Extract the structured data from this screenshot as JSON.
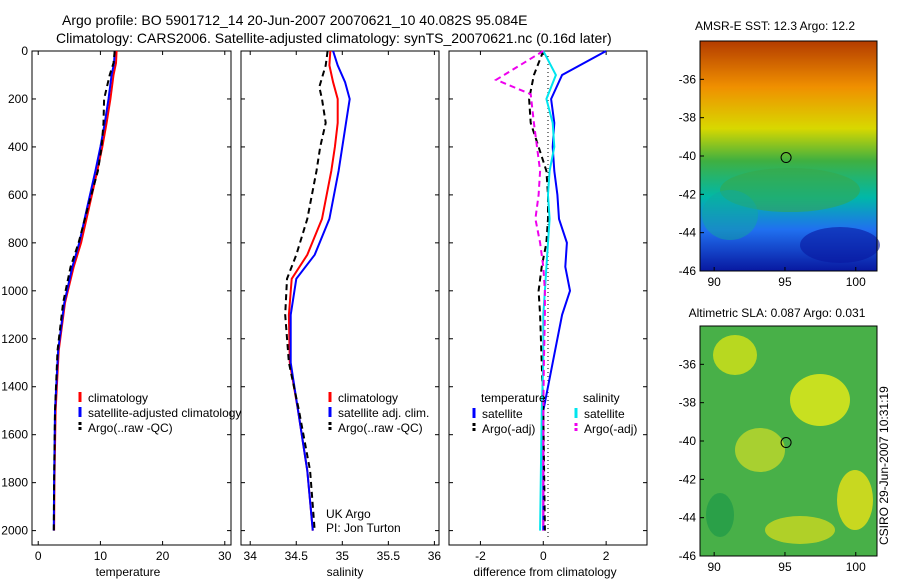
{
  "header": {
    "line1": "Argo profile: BO 5901712_14 20-Jun-2007 20070621_10 40.082S 95.084E",
    "line2": "Climatology: CARS2006. Satellite-adjusted climatology: synTS_20070621.nc (0.16d later)"
  },
  "stamp": "CSIRO 29-Jun-2007 10:31:19",
  "colors": {
    "climatology": "#ff0000",
    "satellite": "#0000ff",
    "argo": "#000000",
    "sal_satellite": "#00e5ee",
    "sal_argo": "#ee00ee"
  },
  "chart_data": [
    {
      "type": "line",
      "name": "temperature-panel",
      "xlabel": "temperature",
      "xlim": [
        -1,
        31
      ],
      "ylim": [
        2060,
        0
      ],
      "xticks": [
        0,
        10,
        20,
        30
      ],
      "yticks": [
        0,
        200,
        400,
        600,
        800,
        1000,
        1200,
        1400,
        1600,
        1800,
        2000
      ],
      "legend": [
        "climatology",
        "satellite-adjusted climatology",
        "Argo(..raw -QC)"
      ],
      "series": [
        {
          "name": "climatology",
          "color": "#ff0000",
          "dash": "",
          "x": [
            12.6,
            12.5,
            12.1,
            11.6,
            11.0,
            10.3,
            9.5,
            8.2,
            6.9,
            5.7,
            4.3,
            3.3,
            2.8,
            2.6,
            2.55
          ],
          "y": [
            0,
            50,
            100,
            200,
            300,
            400,
            500,
            650,
            800,
            900,
            1050,
            1250,
            1500,
            1800,
            2000
          ]
        },
        {
          "name": "satellite-adjusted climatology",
          "color": "#0000ff",
          "dash": "",
          "x": [
            12.3,
            12.2,
            11.8,
            11.3,
            10.7,
            10.0,
            9.2,
            7.9,
            6.6,
            5.5,
            4.2,
            3.2,
            2.7,
            2.55,
            2.5
          ],
          "y": [
            0,
            50,
            100,
            200,
            300,
            400,
            500,
            650,
            800,
            900,
            1050,
            1250,
            1500,
            1800,
            2000
          ]
        },
        {
          "name": "Argo(..raw -QC)",
          "color": "#000000",
          "dash": "6,4",
          "x": [
            12.3,
            12.1,
            11.5,
            10.6,
            10.5,
            10.2,
            9.6,
            8.0,
            6.5,
            5.2,
            4.0,
            3.1,
            2.7,
            2.55,
            2.5
          ],
          "y": [
            0,
            50,
            100,
            200,
            300,
            400,
            500,
            650,
            800,
            900,
            1050,
            1250,
            1500,
            1800,
            2000
          ]
        }
      ]
    },
    {
      "type": "line",
      "name": "salinity-panel",
      "xlabel": "salinity",
      "xlim": [
        33.9,
        36.05
      ],
      "ylim": [
        2060,
        0
      ],
      "xticks": [
        34,
        34.5,
        35,
        35.5,
        36
      ],
      "notes": [
        "UK Argo",
        "PI: Jon Turton"
      ],
      "legend": [
        "climatology",
        "satellite adj. clim.",
        "Argo(..raw -QC)"
      ],
      "series": [
        {
          "name": "climatology",
          "color": "#ff0000",
          "dash": "",
          "x": [
            34.87,
            34.86,
            34.9,
            34.95,
            34.95,
            34.92,
            34.88,
            34.78,
            34.62,
            34.45,
            34.42,
            34.43,
            34.52,
            34.62,
            34.68
          ],
          "y": [
            0,
            60,
            130,
            200,
            300,
            400,
            500,
            700,
            850,
            950,
            1100,
            1300,
            1500,
            1750,
            2000
          ]
        },
        {
          "name": "satellite adj. clim.",
          "color": "#0000ff",
          "dash": "",
          "x": [
            34.9,
            34.95,
            35.03,
            35.08,
            35.04,
            35.0,
            34.96,
            34.86,
            34.7,
            34.5,
            34.44,
            34.44,
            34.52,
            34.62,
            34.68
          ],
          "y": [
            0,
            60,
            130,
            200,
            300,
            400,
            500,
            700,
            850,
            950,
            1100,
            1300,
            1500,
            1750,
            2000
          ]
        },
        {
          "name": "Argo(..raw -QC)",
          "color": "#000000",
          "dash": "6,4",
          "x": [
            34.84,
            34.82,
            34.75,
            34.78,
            34.82,
            34.76,
            34.72,
            34.62,
            34.5,
            34.4,
            34.38,
            34.42,
            34.53,
            34.65,
            34.7
          ],
          "y": [
            0,
            60,
            150,
            200,
            300,
            400,
            500,
            700,
            850,
            950,
            1100,
            1300,
            1500,
            1750,
            2000
          ]
        }
      ]
    },
    {
      "type": "line",
      "name": "difference-panel",
      "xlabel": "difference from climatology",
      "xlim": [
        -3,
        3.3
      ],
      "ylim": [
        2060,
        0
      ],
      "xticks": [
        -2,
        0,
        2
      ],
      "legend_titles": [
        "temperature",
        "salinity"
      ],
      "legend": [
        "satellite",
        "Argo(-adj)",
        "satellite",
        "Argo(-adj)"
      ],
      "series": [
        {
          "name": "temperature satellite",
          "color": "#0000ff",
          "dash": "",
          "x": [
            2.0,
            0.6,
            0.25,
            0.35,
            0.3,
            0.35,
            0.45,
            0.5,
            0.75,
            0.7,
            0.85,
            0.6,
            0.3,
            0.0,
            0.0
          ],
          "y": [
            0,
            100,
            200,
            300,
            400,
            500,
            600,
            700,
            800,
            900,
            1000,
            1100,
            1300,
            1500,
            2000
          ]
        },
        {
          "name": "temperature Argo(-adj)",
          "color": "#000000",
          "dash": "6,4",
          "x": [
            0.0,
            -0.3,
            -0.45,
            -0.4,
            -0.15,
            0.1,
            0.15,
            0.15,
            0.1,
            -0.05,
            -0.15,
            -0.1,
            -0.05,
            0.0,
            0.05
          ],
          "y": [
            0,
            100,
            200,
            300,
            400,
            500,
            600,
            700,
            800,
            900,
            1000,
            1100,
            1300,
            1500,
            2000
          ]
        },
        {
          "name": "salinity satellite",
          "color": "#00e5ee",
          "dash": "",
          "x": [
            0.0,
            0.4,
            0.1,
            0.3,
            0.35,
            0.2,
            0.15,
            0.2,
            0.15,
            0.1,
            0.05,
            0.0,
            0.0,
            -0.05,
            -0.1
          ],
          "y": [
            0,
            100,
            200,
            300,
            400,
            500,
            600,
            700,
            800,
            900,
            1000,
            1100,
            1300,
            1500,
            2000
          ]
        },
        {
          "name": "salinity Argo(-adj)",
          "color": "#ee00ee",
          "dash": "6,4",
          "x": [
            0.0,
            -1.5,
            -0.4,
            -0.3,
            -0.2,
            -0.1,
            -0.15,
            -0.25,
            -0.1,
            0.0,
            0.05,
            0.05,
            0.02,
            0.0,
            0.0
          ],
          "y": [
            0,
            120,
            180,
            300,
            400,
            500,
            600,
            700,
            800,
            900,
            1000,
            1100,
            1300,
            1500,
            2000
          ]
        }
      ]
    },
    {
      "type": "heatmap",
      "name": "sst-map",
      "title": "AMSR-E SST: 12.3 Argo: 12.2",
      "xlim": [
        89,
        101.5
      ],
      "ylim": [
        -46,
        -34
      ],
      "xticks": [
        90,
        95,
        100
      ],
      "yticks": [
        -36,
        -38,
        -40,
        -42,
        -44,
        -46
      ],
      "marker": {
        "lon": 95.08,
        "lat": -40.08
      }
    },
    {
      "type": "heatmap",
      "name": "sla-map",
      "title": "Altimetric SLA: 0.087 Argo: 0.031",
      "xlim": [
        89,
        101.5
      ],
      "ylim": [
        -46,
        -34
      ],
      "xticks": [
        90,
        95,
        100
      ],
      "yticks": [
        -36,
        -38,
        -40,
        -42,
        -44,
        -46
      ],
      "marker": {
        "lon": 95.08,
        "lat": -40.08
      }
    }
  ]
}
